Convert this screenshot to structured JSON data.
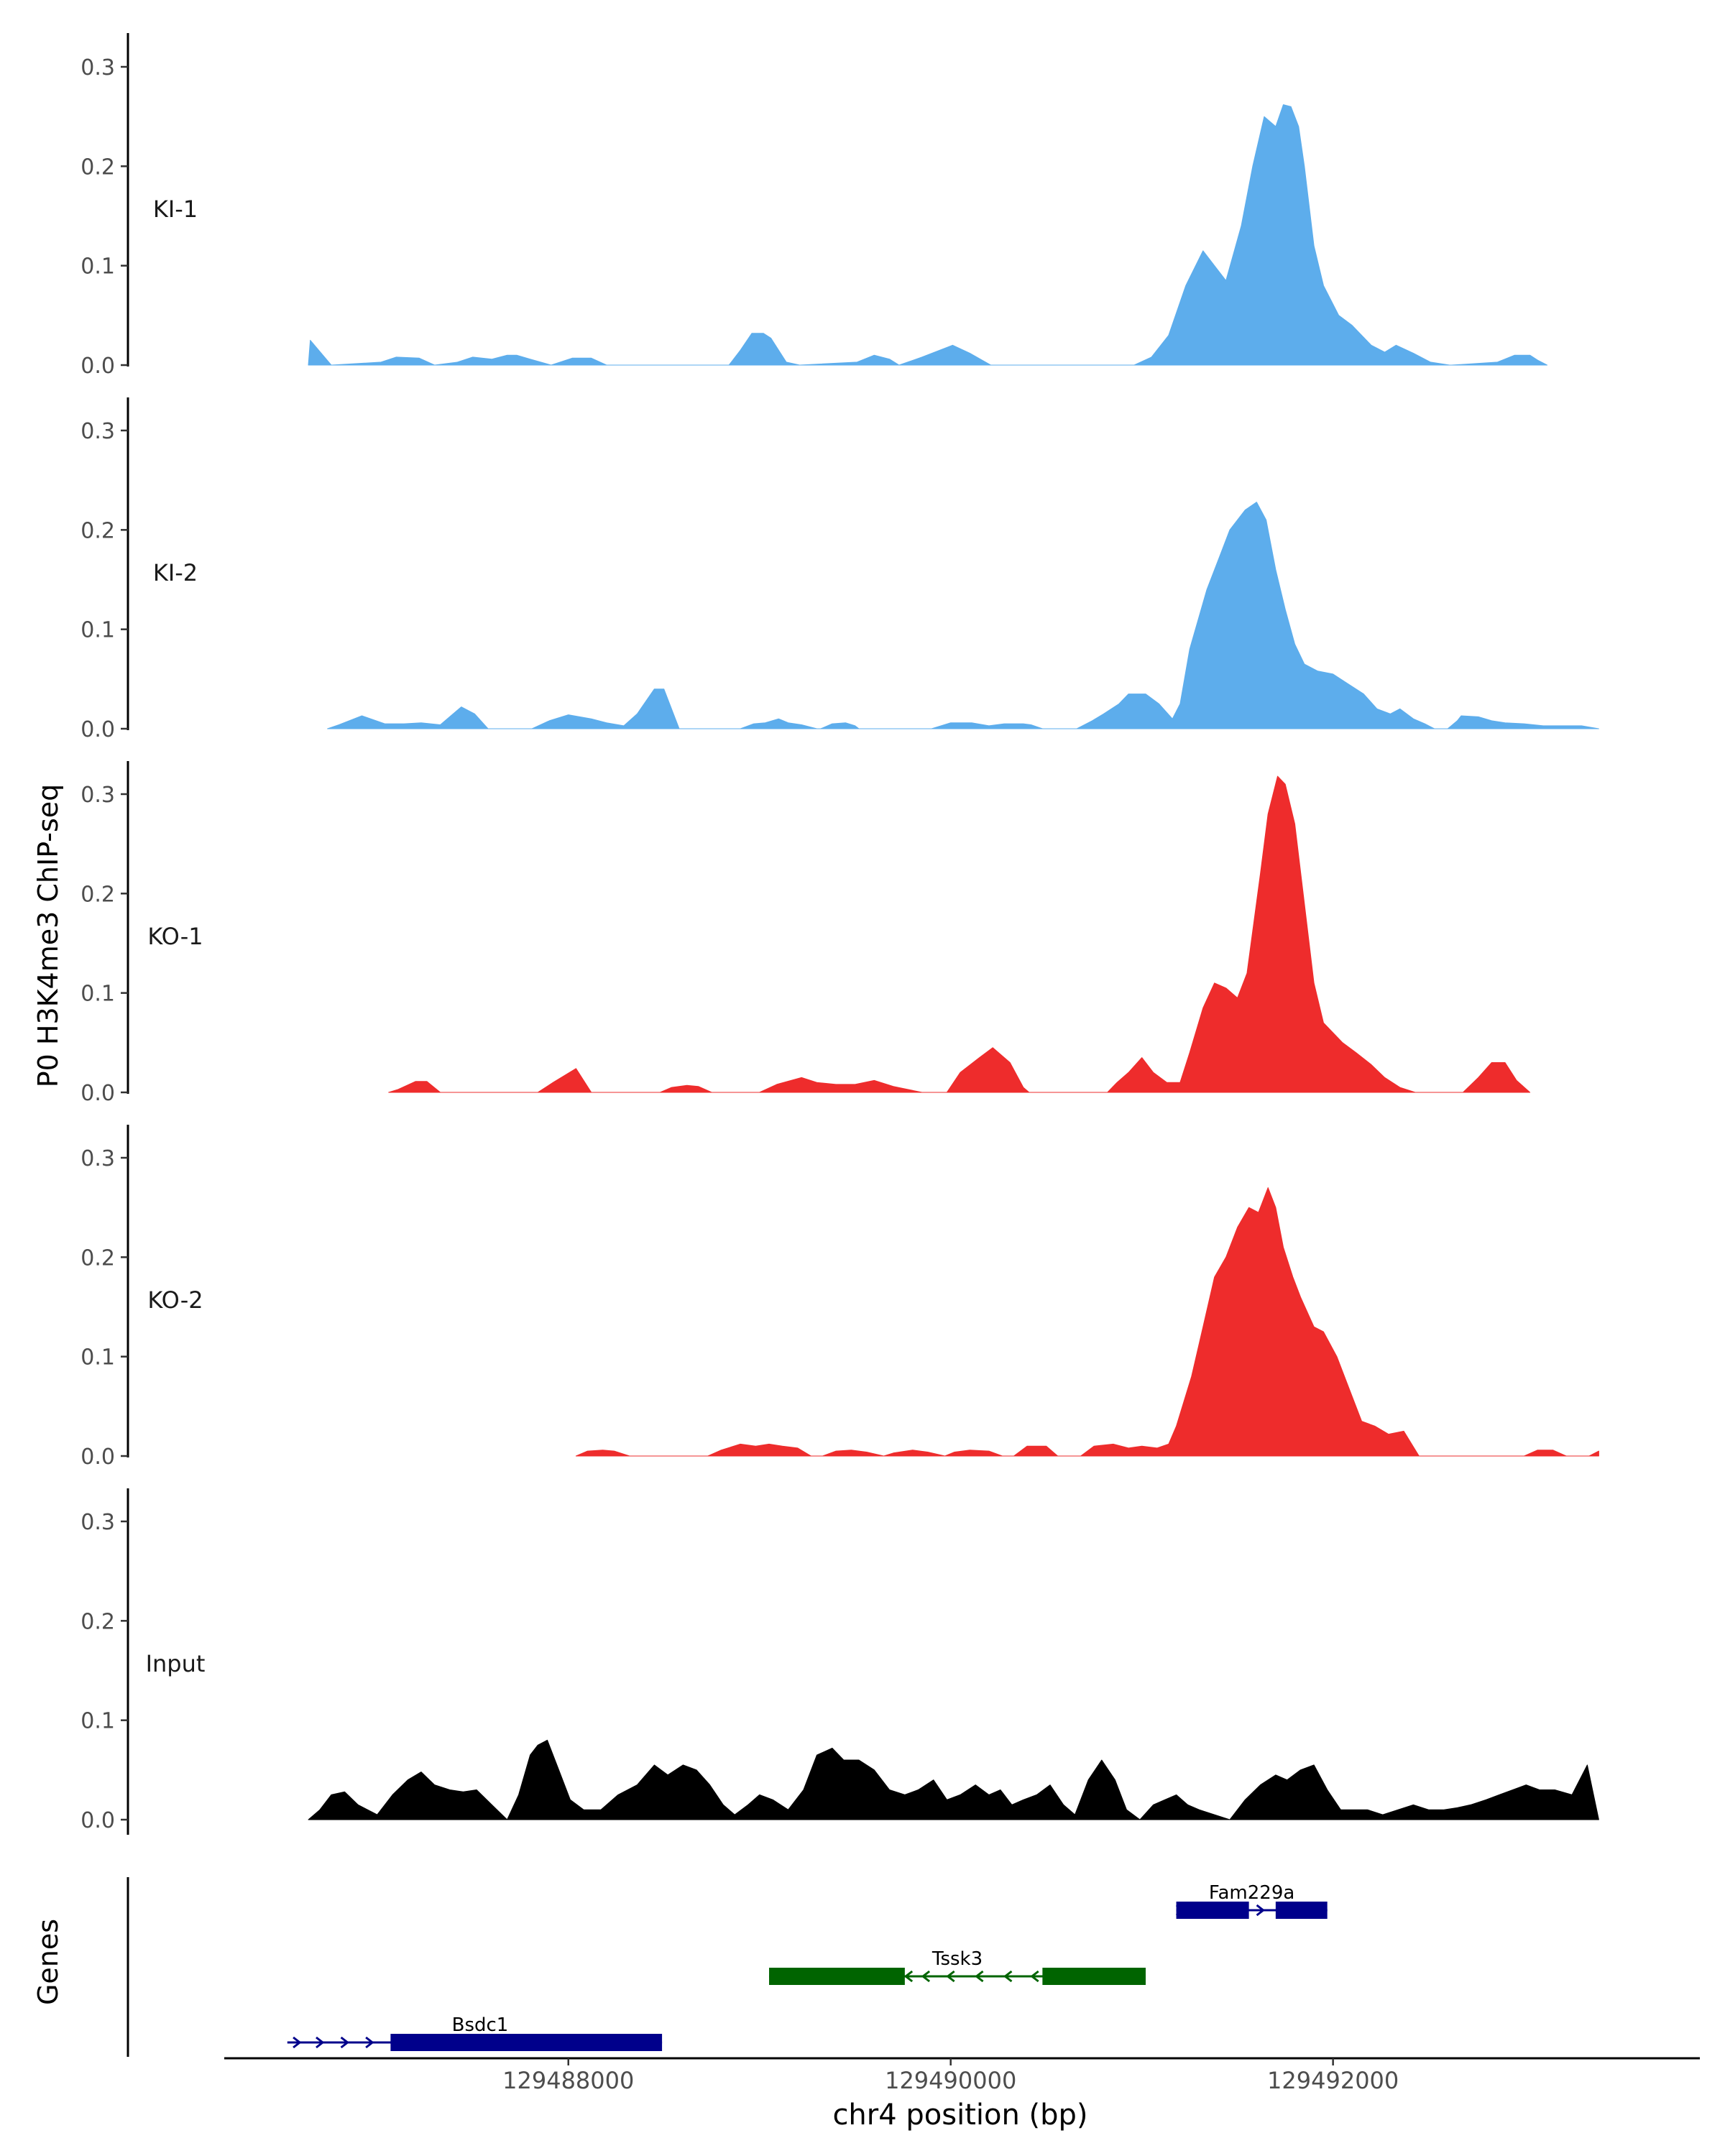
{
  "chart_data": {
    "type": "area",
    "ylabel": "P0 H3K4me3 ChIP-seq",
    "xlabel": "chr4 position (bp)",
    "genes_label": "Genes",
    "xlim": [
      129486200,
      129493900
    ],
    "ylim": [
      0,
      0.33
    ],
    "yticks": [
      0.0,
      0.1,
      0.2,
      0.3
    ],
    "ytick_labels": [
      "0.0",
      "0.1",
      "0.2",
      "0.3"
    ],
    "xticks": [
      129488000,
      129490000,
      129492000
    ],
    "xtick_labels": [
      "129488000",
      "129490000",
      "129492000"
    ],
    "tracks": [
      {
        "name": "KI-1",
        "color": "#5DADEC",
        "x": [
          129486640,
          129486650,
          129486760,
          129486760,
          129487020,
          129487100,
          129487220,
          129487300,
          129487420,
          129487500,
          129487600,
          129487680,
          129487730,
          129487800,
          129487910,
          129488020,
          129488120,
          129488200,
          129488300,
          129488310,
          129488840,
          129488900,
          129488960,
          129489020,
          129489060,
          129489140,
          129489210,
          129489210,
          129489510,
          129489600,
          129489680,
          129489730,
          129489850,
          129490010,
          129490100,
          129490210,
          129490240,
          129490960,
          129491050,
          129491140,
          129491230,
          129491320,
          129491380,
          129491440,
          129491520,
          129491580,
          129491640,
          129491700,
          129491740,
          129491780,
          129491820,
          129491850,
          129491900,
          129491950,
          129492030,
          129492100,
          129492200,
          129492270,
          129492330,
          129492420,
          129492510,
          129492610,
          129492620,
          129492860,
          129492950,
          129493030,
          129493070,
          129493120
        ],
        "y": [
          0.0,
          0.025,
          0.0,
          0.0,
          0.003,
          0.008,
          0.007,
          0.0,
          0.003,
          0.008,
          0.006,
          0.01,
          0.01,
          0.006,
          0.0,
          0.007,
          0.007,
          0.0,
          0.0,
          0.0,
          0.0,
          0.015,
          0.032,
          0.032,
          0.027,
          0.003,
          0.0,
          0.0,
          0.003,
          0.01,
          0.006,
          0.0,
          0.008,
          0.02,
          0.012,
          0.0,
          0.0,
          0.0,
          0.008,
          0.03,
          0.08,
          0.115,
          0.1,
          0.085,
          0.14,
          0.2,
          0.25,
          0.24,
          0.262,
          0.26,
          0.24,
          0.2,
          0.12,
          0.08,
          0.05,
          0.04,
          0.02,
          0.013,
          0.02,
          0.012,
          0.003,
          0.0,
          0.0,
          0.003,
          0.01,
          0.01,
          0.005,
          0.0
        ]
      },
      {
        "name": "KI-2",
        "color": "#5DADEC",
        "x": [
          129486740,
          129486800,
          129486920,
          129487040,
          129487140,
          129487230,
          129487330,
          129487440,
          129487510,
          129487580,
          129487810,
          129487900,
          129488000,
          129488120,
          129488200,
          129488290,
          129488360,
          129488450,
          129488500,
          129488580,
          129488900,
          129488970,
          129489030,
          129489100,
          129489150,
          129489220,
          129489300,
          129489320,
          129489380,
          129489450,
          129489500,
          129489520,
          129489900,
          129490000,
          129490110,
          129490200,
          129490280,
          129490380,
          129490420,
          129490480,
          129490660,
          129490740,
          129490800,
          129490880,
          129490930,
          129491020,
          129491090,
          129491160,
          129491200,
          129491250,
          129491340,
          129491420,
          129491460,
          129491540,
          129491600,
          129491650,
          129491700,
          129491750,
          129491800,
          129491850,
          129491920,
          129492000,
          129492080,
          129492160,
          129492230,
          129492300,
          129492350,
          129492420,
          129492480,
          129492530,
          129492600,
          129492650,
          129492670,
          129492760,
          129492830,
          129492900,
          129493000,
          129493100,
          129493300,
          129493390
        ],
        "y": [
          0.0,
          0.004,
          0.013,
          0.005,
          0.005,
          0.006,
          0.004,
          0.022,
          0.015,
          0.0,
          0.0,
          0.008,
          0.014,
          0.01,
          0.006,
          0.003,
          0.015,
          0.04,
          0.04,
          0.0,
          0.0,
          0.005,
          0.006,
          0.01,
          0.006,
          0.004,
          0.0,
          0.0,
          0.005,
          0.006,
          0.003,
          0.0,
          0.0,
          0.006,
          0.006,
          0.003,
          0.005,
          0.005,
          0.004,
          0.0,
          0.0,
          0.008,
          0.015,
          0.025,
          0.035,
          0.035,
          0.025,
          0.01,
          0.025,
          0.08,
          0.14,
          0.18,
          0.2,
          0.22,
          0.228,
          0.21,
          0.16,
          0.12,
          0.085,
          0.065,
          0.058,
          0.055,
          0.045,
          0.035,
          0.02,
          0.015,
          0.02,
          0.01,
          0.005,
          0.0,
          0.0,
          0.008,
          0.013,
          0.012,
          0.008,
          0.006,
          0.005,
          0.003,
          0.003,
          0.0
        ]
      },
      {
        "name": "KO-1",
        "color": "#EE2C2C",
        "x": [
          129487060,
          129487110,
          129487200,
          129487260,
          129487330,
          129487840,
          129487920,
          129488040,
          129488120,
          129488480,
          129488540,
          129488620,
          129488680,
          129488750,
          129489000,
          129489090,
          129489220,
          129489300,
          129489400,
          129489500,
          129489600,
          129489700,
          129489750,
          129489850,
          129489960,
          129489980,
          129490050,
          129490150,
          129490220,
          129490310,
          129490380,
          129490410,
          129490820,
          129490870,
          129490930,
          129491000,
          129491060,
          129491130,
          129491200,
          129491250,
          129491320,
          129491380,
          129491440,
          129491500,
          129491550,
          129491620,
          129491660,
          129491710,
          129491750,
          129491800,
          129491850,
          129491900,
          129491950,
          129492050,
          129492120,
          129492200,
          129492270,
          129492350,
          129492430,
          129492470,
          129492680,
          129492760,
          129492830,
          129492900,
          129492960,
          129493030
        ],
        "y": [
          0.0,
          0.003,
          0.011,
          0.011,
          0.0,
          0.0,
          0.01,
          0.024,
          0.0,
          0.0,
          0.005,
          0.007,
          0.006,
          0.0,
          0.0,
          0.008,
          0.015,
          0.01,
          0.008,
          0.008,
          0.012,
          0.006,
          0.004,
          0.0,
          0.0,
          0.0,
          0.02,
          0.035,
          0.045,
          0.03,
          0.005,
          0.0,
          0.0,
          0.01,
          0.02,
          0.035,
          0.02,
          0.01,
          0.01,
          0.04,
          0.085,
          0.11,
          0.105,
          0.095,
          0.12,
          0.22,
          0.28,
          0.318,
          0.31,
          0.27,
          0.19,
          0.11,
          0.07,
          0.05,
          0.04,
          0.028,
          0.015,
          0.005,
          0.0,
          0.0,
          0.0,
          0.015,
          0.03,
          0.03,
          0.012,
          0.0
        ]
      },
      {
        "name": "KO-2",
        "color": "#EE2C2C",
        "x": [
          129488040,
          129488100,
          129488180,
          129488240,
          129488320,
          129488730,
          129488800,
          129488900,
          129488980,
          129489050,
          129489120,
          129489200,
          129489270,
          129489330,
          129489400,
          129489480,
          129489560,
          129489650,
          129489700,
          129489800,
          129489880,
          129489970,
          129490020,
          129490100,
          129490200,
          129490270,
          129490330,
          129490400,
          129490500,
          129490560,
          129490680,
          129490750,
          129490850,
          129490930,
          129491000,
          129491080,
          129491140,
          129491180,
          129491260,
          129491320,
          129491380,
          129491440,
          129491500,
          129491560,
          129491610,
          129491660,
          129491700,
          129491740,
          129491790,
          129491830,
          129491900,
          129491950,
          129492020,
          129492080,
          129492150,
          129492220,
          129492290,
          129492370,
          129492450,
          129493000,
          129493070,
          129493150,
          129493220,
          129493340,
          129493390,
          129493390
        ],
        "y": [
          0.0,
          0.005,
          0.006,
          0.005,
          0.0,
          0.0,
          0.006,
          0.012,
          0.01,
          0.012,
          0.01,
          0.008,
          0.0,
          0.0,
          0.005,
          0.006,
          0.004,
          0.0,
          0.003,
          0.006,
          0.004,
          0.0,
          0.004,
          0.006,
          0.005,
          0.0,
          0.0,
          0.01,
          0.01,
          0.0,
          0.0,
          0.01,
          0.012,
          0.008,
          0.01,
          0.008,
          0.012,
          0.03,
          0.08,
          0.13,
          0.18,
          0.2,
          0.23,
          0.25,
          0.245,
          0.27,
          0.25,
          0.21,
          0.18,
          0.16,
          0.13,
          0.125,
          0.1,
          0.07,
          0.035,
          0.03,
          0.022,
          0.025,
          0.0,
          0.0,
          0.006,
          0.006,
          0.0,
          0.0,
          0.005,
          0.0
        ]
      },
      {
        "name": "Input",
        "color": "#000000",
        "x": [
          129486640,
          129486700,
          129486760,
          129486830,
          129486900,
          129487000,
          129487080,
          129487160,
          129487230,
          129487300,
          129487380,
          129487450,
          129487520,
          129487600,
          129487680,
          129487740,
          129487800,
          129487840,
          129487890,
          129487950,
          129488010,
          129488080,
          129488170,
          129488260,
          129488360,
          129488450,
          129488520,
          129488600,
          129488670,
          129488740,
          129488810,
          129488870,
          129488940,
          129489000,
          129489070,
          129489150,
          129489230,
          129489300,
          129489380,
          129489440,
          129489520,
          129489600,
          129489680,
          129489760,
          129489830,
          129489910,
          129489980,
          129490050,
          129490130,
          129490200,
          129490260,
          129490320,
          129490380,
          129490450,
          129490520,
          129490590,
          129490650,
          129490720,
          129490790,
          129490860,
          129490920,
          129490990,
          129491060,
          129491120,
          129491180,
          129491240,
          129491300,
          129491380,
          129491460,
          129491540,
          129491620,
          129491700,
          129491760,
          129491830,
          129491900,
          129491970,
          129492040,
          129492110,
          129492180,
          129492260,
          129492340,
          129492420,
          129492500,
          129492580,
          129492650,
          129492720,
          129492800,
          129492870,
          129492940,
          129493010,
          129493080,
          129493160,
          129493250,
          129493330,
          129493390
        ],
        "y": [
          0.0,
          0.01,
          0.025,
          0.028,
          0.015,
          0.005,
          0.025,
          0.04,
          0.048,
          0.035,
          0.03,
          0.028,
          0.03,
          0.015,
          0.0,
          0.025,
          0.065,
          0.075,
          0.08,
          0.05,
          0.02,
          0.01,
          0.01,
          0.025,
          0.035,
          0.055,
          0.045,
          0.055,
          0.05,
          0.035,
          0.015,
          0.005,
          0.015,
          0.025,
          0.02,
          0.01,
          0.03,
          0.065,
          0.072,
          0.06,
          0.06,
          0.05,
          0.03,
          0.025,
          0.03,
          0.04,
          0.02,
          0.025,
          0.035,
          0.025,
          0.03,
          0.015,
          0.02,
          0.025,
          0.035,
          0.015,
          0.005,
          0.04,
          0.06,
          0.04,
          0.01,
          0.0,
          0.015,
          0.02,
          0.025,
          0.015,
          0.01,
          0.005,
          0.0,
          0.02,
          0.035,
          0.045,
          0.04,
          0.05,
          0.055,
          0.03,
          0.01,
          0.01,
          0.01,
          0.005,
          0.01,
          0.015,
          0.01,
          0.01,
          0.012,
          0.015,
          0.02,
          0.025,
          0.03,
          0.035,
          0.03,
          0.03,
          0.025,
          0.055,
          0.0
        ]
      }
    ],
    "genes": [
      {
        "name": "Fam229a",
        "color": "#00008B",
        "strand": "+",
        "start": 129491180,
        "end": 129491970,
        "row": 0,
        "exons": [
          [
            129491180,
            129491560
          ],
          [
            129491700,
            129491970
          ]
        ],
        "arrows": [
          129491200,
          129491620
        ]
      },
      {
        "name": "Tssk3",
        "color": "#006400",
        "strand": "-",
        "start": 129489050,
        "end": 129491020,
        "row": 1,
        "exons": [
          [
            129489050,
            129489760
          ],
          [
            129490480,
            129491020
          ]
        ],
        "arrows": [
          129489780,
          129489870,
          129490000,
          129490150,
          129490300,
          129490440
        ]
      },
      {
        "name": "Bsdc1",
        "color": "#00008B",
        "strand": "+",
        "start": 129486530,
        "end": 129488490,
        "row": 2,
        "exons": [
          [
            129487070,
            129488490
          ]
        ],
        "arrows": [
          129486580,
          129486700,
          129486830,
          129486960
        ]
      }
    ]
  }
}
